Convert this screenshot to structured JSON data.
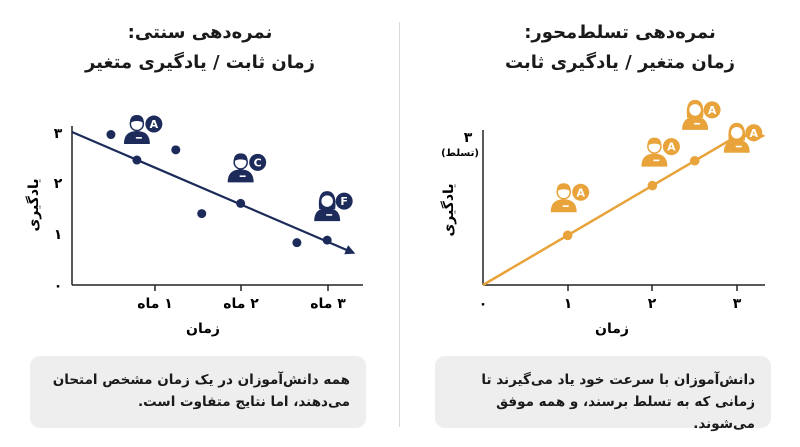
{
  "colors": {
    "navy": "#1c2b5a",
    "orange": "#e8a33a",
    "caption_bg": "#eeeeee",
    "axis": "#222222"
  },
  "left_panel": {
    "title_line1": "نمره‌دهی سنتی:",
    "title_line2": "زمان ثابت / یادگیری متغیر",
    "x_axis_label": "زمان",
    "y_axis_label": "یادگیری",
    "caption": "همه دانش‌آموزان در یک زمان مشخص امتحان می‌دهند، اما نتایج متفاوت است.",
    "icon_names": [
      "student-male-icon",
      "student-male-icon",
      "student-female-icon"
    ]
  },
  "right_panel": {
    "title_line1": "نمره‌دهی تسلط‌محور:",
    "title_line2": "زمان متغیر / یادگیری ثابت",
    "x_axis_label": "زمان",
    "y_axis_label": "یادگیری",
    "y_top_note": "(تسلط)",
    "caption": "دانش‌آموزان با سرعت خود یاد می‌گیرند تا زمانی که به تسلط برسند، و همه موفق می‌شوند.",
    "icon_names": [
      "student-male-icon",
      "student-male-icon",
      "student-female-icon",
      "student-female-icon"
    ]
  },
  "chart_data": [
    {
      "type": "scatter",
      "title": "نمره‌دهی سنتی: زمان ثابت / یادگیری متغیر",
      "xlabel": "زمان",
      "ylabel": "یادگیری",
      "xlim": [
        0,
        3.3
      ],
      "ylim": [
        0,
        3
      ],
      "x_ticks": [
        "۱ ماه",
        "۲ ماه",
        "۳ ماه"
      ],
      "y_ticks": [
        "۰",
        "۱",
        "۲",
        "۳"
      ],
      "points": [
        {
          "x": 0.45,
          "y": 2.95
        },
        {
          "x": 0.75,
          "y": 2.45
        },
        {
          "x": 1.2,
          "y": 2.65
        },
        {
          "x": 1.5,
          "y": 1.4
        },
        {
          "x": 1.95,
          "y": 1.6
        },
        {
          "x": 2.6,
          "y": 0.83
        },
        {
          "x": 2.95,
          "y": 0.88
        }
      ],
      "trend_line": {
        "from": [
          0,
          3.0
        ],
        "to": [
          3.3,
          0.65
        ]
      },
      "student_grades": [
        {
          "x": 0.75,
          "y": 2.45,
          "grade": "A"
        },
        {
          "x": 1.95,
          "y": 1.6,
          "grade": "C"
        },
        {
          "x": 2.95,
          "y": 0.88,
          "grade": "F"
        }
      ]
    },
    {
      "type": "line",
      "title": "نمره‌دهی تسلط‌محور: زمان متغیر / یادگیری ثابت",
      "xlabel": "زمان",
      "ylabel": "یادگیری",
      "xlim": [
        0,
        3.3
      ],
      "ylim": [
        0,
        3
      ],
      "x_ticks": [
        "۰",
        "۱",
        "۲",
        "۳"
      ],
      "y_ticks": [
        "۳"
      ],
      "points": [
        {
          "x": 0,
          "y": 0
        },
        {
          "x": 1,
          "y": 1
        },
        {
          "x": 2,
          "y": 2
        },
        {
          "x": 2.5,
          "y": 2.5
        },
        {
          "x": 3,
          "y": 3
        }
      ],
      "student_grades": [
        {
          "x": 1,
          "y": 1,
          "grade": "A"
        },
        {
          "x": 2,
          "y": 2,
          "grade": "A"
        },
        {
          "x": 2.5,
          "y": 2.5,
          "grade": "A"
        },
        {
          "x": 3,
          "y": 3,
          "grade": "A"
        }
      ]
    }
  ]
}
